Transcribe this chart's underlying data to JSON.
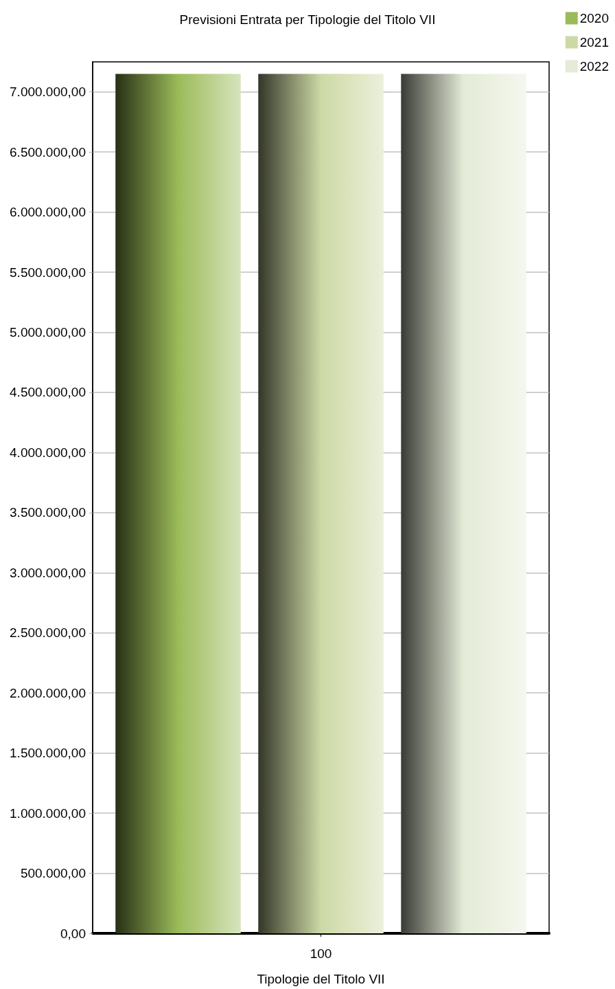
{
  "chart_data": {
    "type": "bar",
    "title": "Previsioni Entrata per Tipologie del Titolo VII",
    "xlabel": "Tipologie del Titolo VII",
    "categories": [
      "100"
    ],
    "series": [
      {
        "name": "2020",
        "color": "#9bbb59",
        "values": [
          7150000
        ]
      },
      {
        "name": "2021",
        "color": "#cdd9a5",
        "values": [
          7150000
        ]
      },
      {
        "name": "2022",
        "color": "#e4ebd6",
        "values": [
          7150000
        ]
      }
    ],
    "ylim": [
      0,
      7250000
    ],
    "yticks": [
      {
        "value": 0,
        "label": "0,00"
      },
      {
        "value": 500000,
        "label": "500.000,00"
      },
      {
        "value": 1000000,
        "label": "1.000.000,00"
      },
      {
        "value": 1500000,
        "label": "1.500.000,00"
      },
      {
        "value": 2000000,
        "label": "2.000.000,00"
      },
      {
        "value": 2500000,
        "label": "2.500.000,00"
      },
      {
        "value": 3000000,
        "label": "3.000.000,00"
      },
      {
        "value": 3500000,
        "label": "3.500.000,00"
      },
      {
        "value": 4000000,
        "label": "4.000.000,00"
      },
      {
        "value": 4500000,
        "label": "4.500.000,00"
      },
      {
        "value": 5000000,
        "label": "5.000.000,00"
      },
      {
        "value": 5500000,
        "label": "5.500.000,00"
      },
      {
        "value": 6000000,
        "label": "6.000.000,00"
      },
      {
        "value": 6500000,
        "label": "6.500.000,00"
      },
      {
        "value": 7000000,
        "label": "7.000.000,00"
      }
    ],
    "grid": "y",
    "legend": "top right"
  }
}
